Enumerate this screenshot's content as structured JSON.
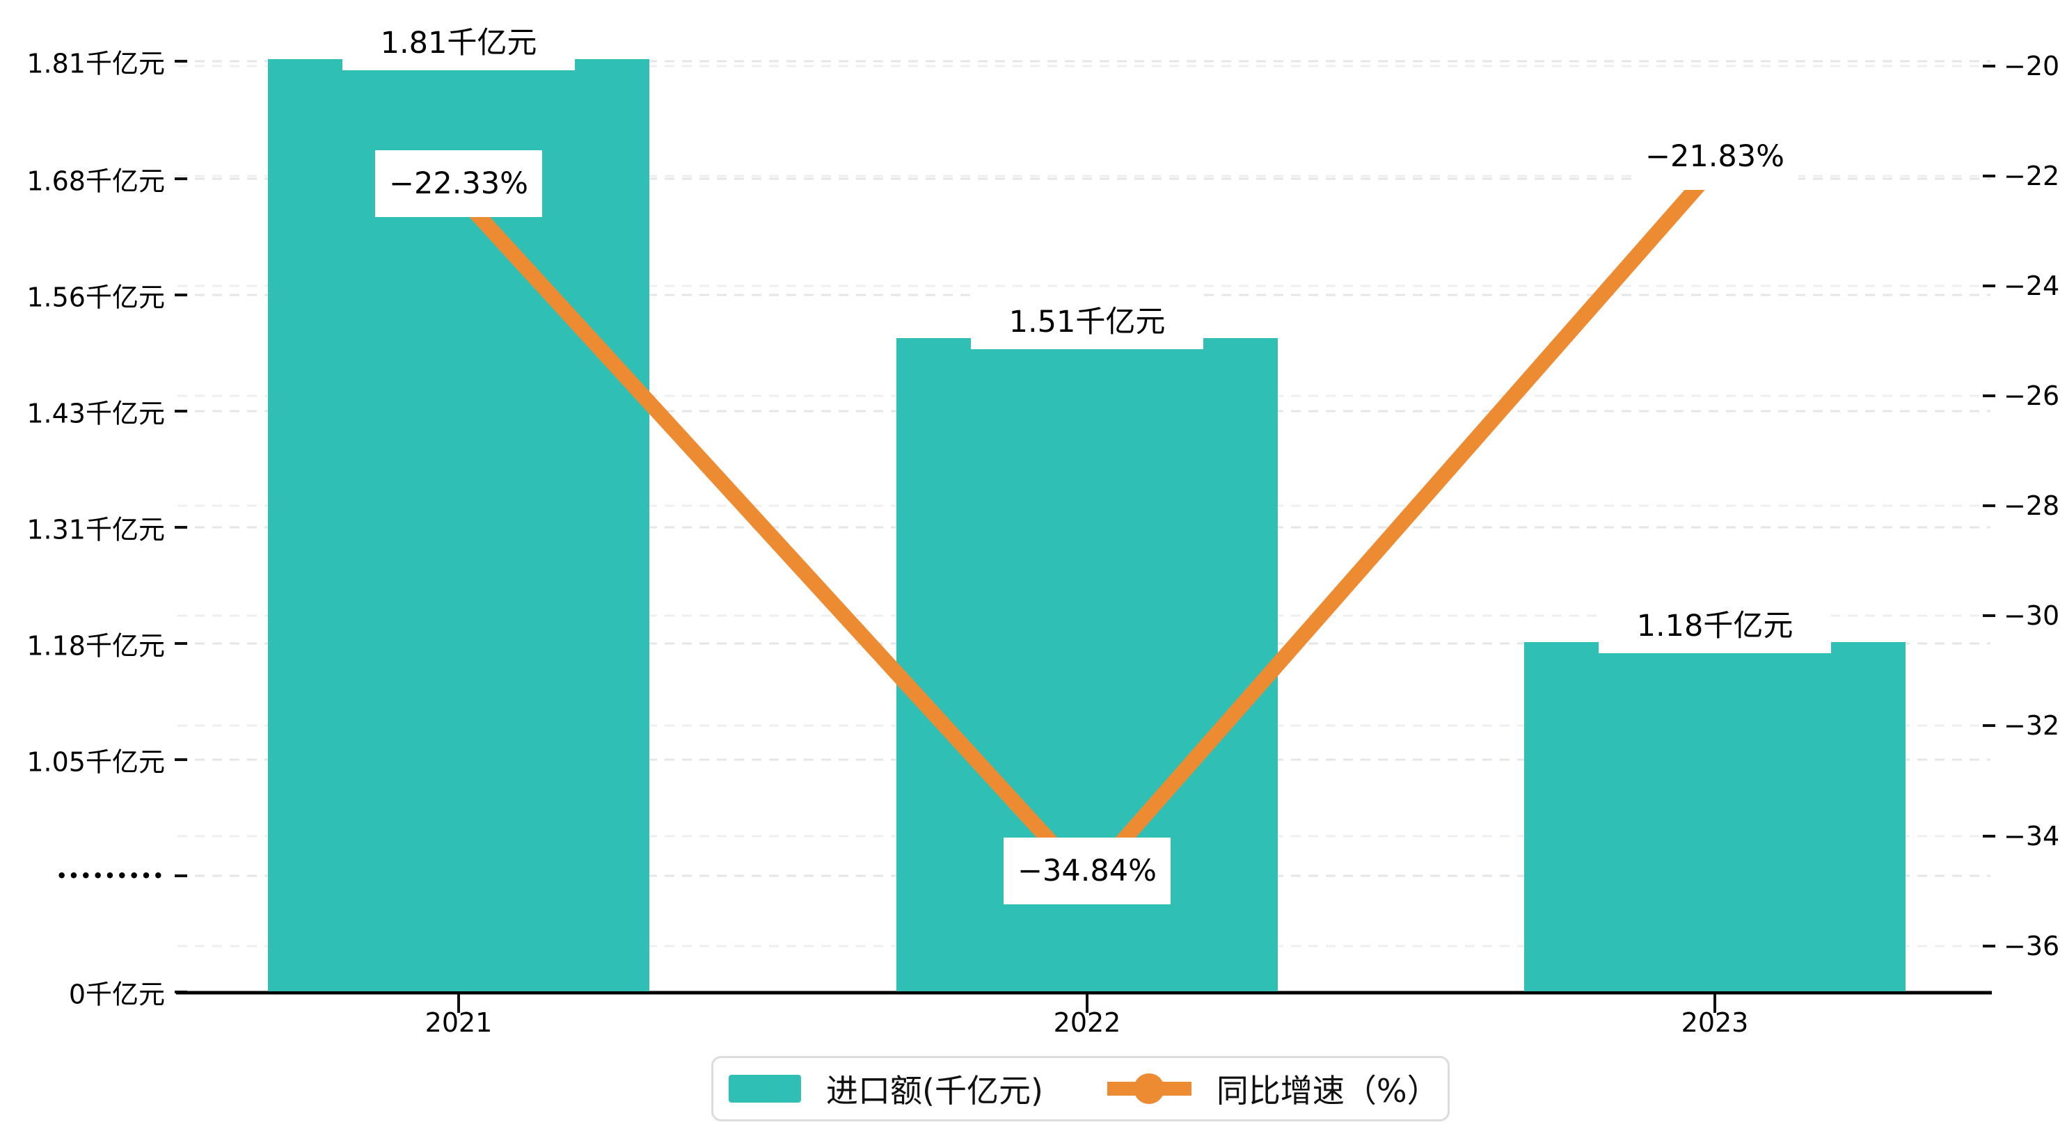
{
  "chart_data": {
    "type": "bar",
    "combo": "bar+line dual axis",
    "title": "",
    "categories": [
      "2021",
      "2022",
      "2023"
    ],
    "series": [
      {
        "name": "进口额(千亿元)",
        "type": "bar",
        "unit": "千亿元",
        "color": "#30bfb4",
        "values": [
          1.81,
          1.51,
          1.18
        ],
        "data_labels": [
          "1.81千亿元",
          "1.51千亿元",
          "1.18千亿元"
        ]
      },
      {
        "name": "同比增速（%）",
        "type": "line",
        "unit": "%",
        "color": "#ed8b33",
        "values": [
          -22.33,
          -34.84,
          -21.83
        ],
        "data_labels": [
          "−22.33%",
          "−34.84%",
          "−21.83%"
        ]
      }
    ],
    "y_axis_left": {
      "unit": "千亿元",
      "broken_axis": true,
      "tick_labels_bottom_to_top": [
        "0千亿元",
        "•••••••••",
        "1.05千亿元",
        "1.18千亿元",
        "1.31千亿元",
        "1.43千亿元",
        "1.56千亿元",
        "1.68千亿元",
        "1.81千亿元"
      ]
    },
    "y_axis_right": {
      "unit": "%",
      "range": [
        -36,
        -20
      ],
      "tick_labels_bottom_to_top": [
        "−36",
        "−34",
        "−32",
        "−30",
        "−28",
        "−26",
        "−24",
        "−22",
        "−20"
      ]
    },
    "x_axis": {
      "tick_labels": [
        "2021",
        "2022",
        "2023"
      ]
    },
    "legend": {
      "position": "bottom-center",
      "items": [
        {
          "label": "进口额(千亿元)",
          "marker": "bar-swatch",
          "color": "#30bfb4"
        },
        {
          "label": "同比增速（%）",
          "marker": "line-dot",
          "color": "#ed8b33"
        }
      ]
    },
    "grid": "horizontal dashed gridlines, light gray",
    "colors": {
      "bar": "#30bfb4",
      "line": "#ed8b33",
      "grid_left": "#e6e6e6",
      "grid_right": "#efefef",
      "axis": "#000000",
      "label_bg": "#ffffff"
    }
  }
}
